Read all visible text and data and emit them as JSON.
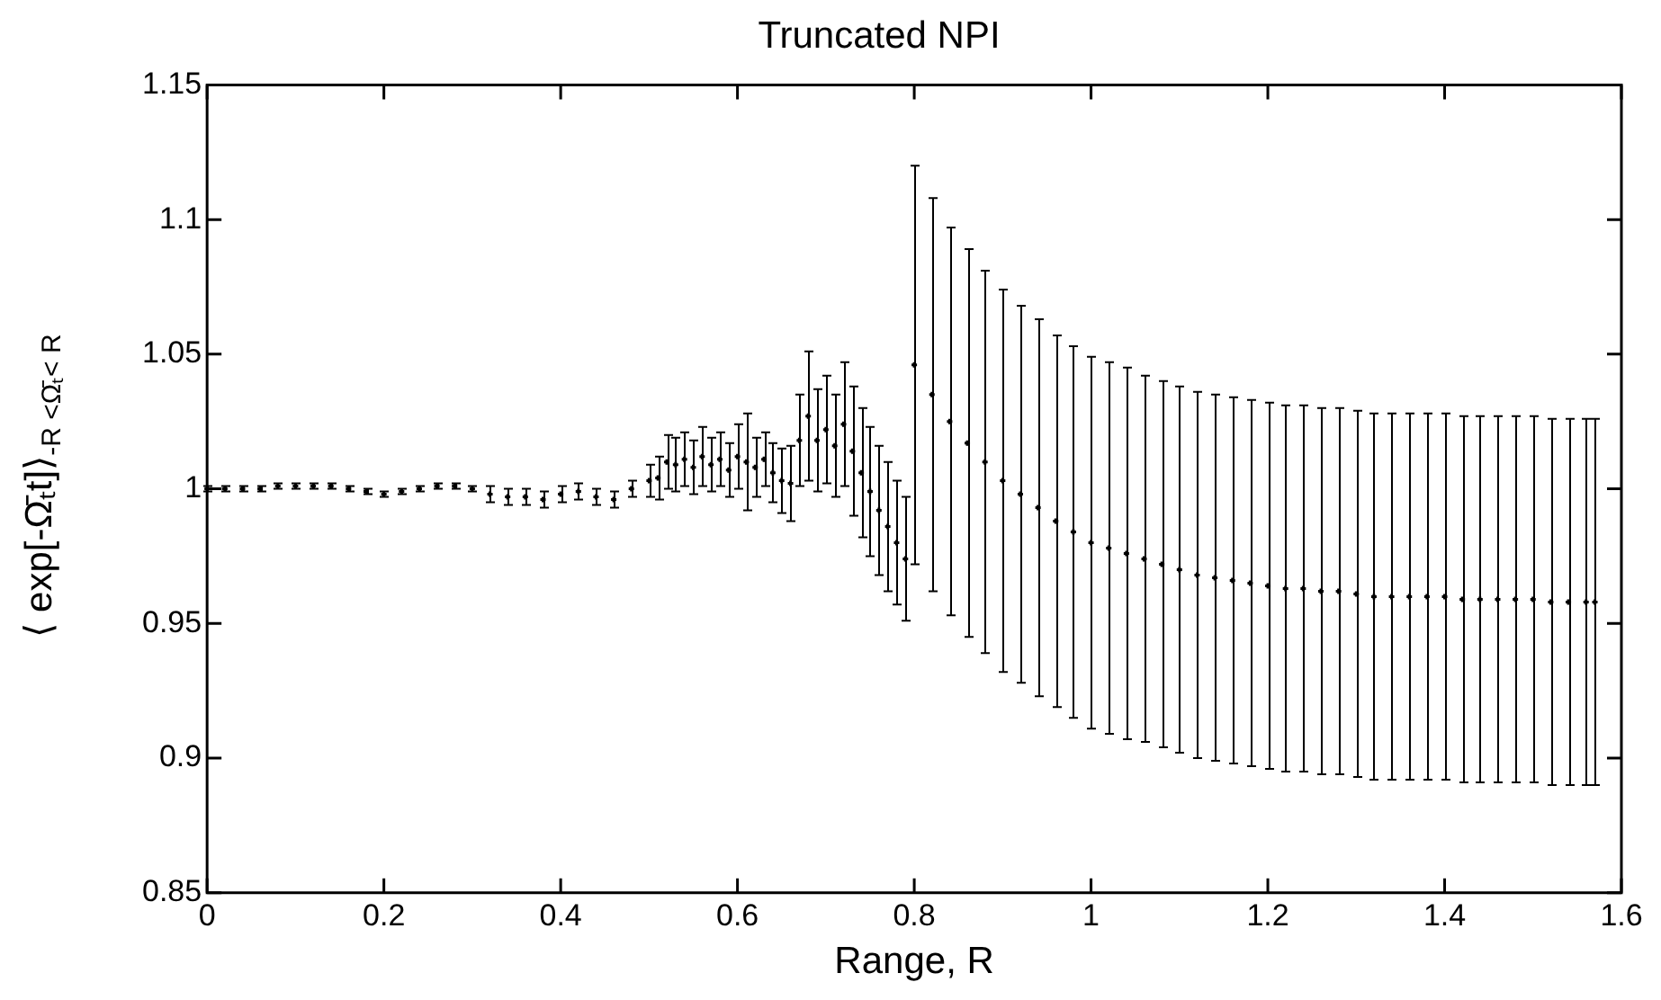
{
  "chart_data": {
    "type": "scatter",
    "title": "Truncated NPI",
    "xlabel": "Range, R",
    "ylabel": "⟨ exp[-Ω̄ₜt]⟩$_{-R <Ω̄ₜ< R}$",
    "xlim": [
      0,
      1.6
    ],
    "xticks": [
      0,
      0.2,
      0.4,
      0.6,
      0.8,
      1,
      1.2,
      1.4,
      1.6
    ],
    "ylim": [
      0.85,
      1.15
    ],
    "yticks": [
      0.85,
      0.9,
      0.95,
      1,
      1.05,
      1.1,
      1.15
    ],
    "grid": false,
    "legend": false,
    "marker": "cross",
    "series": [
      {
        "color": "#000000",
        "x": [
          0,
          0.02,
          0.04,
          0.06,
          0.08,
          0.1,
          0.12,
          0.14,
          0.16,
          0.18,
          0.2,
          0.22,
          0.24,
          0.26,
          0.28,
          0.3,
          0.32,
          0.34,
          0.36,
          0.38,
          0.4,
          0.42,
          0.44,
          0.46,
          0.48,
          0.5,
          0.51,
          0.52,
          0.53,
          0.54,
          0.55,
          0.56,
          0.57,
          0.58,
          0.59,
          0.6,
          0.61,
          0.62,
          0.63,
          0.64,
          0.65,
          0.66,
          0.67,
          0.68,
          0.69,
          0.7,
          0.71,
          0.72,
          0.73,
          0.74,
          0.75,
          0.76,
          0.77,
          0.78,
          0.79,
          0.8,
          0.82,
          0.84,
          0.86,
          0.88,
          0.9,
          0.92,
          0.94,
          0.96,
          0.98,
          1,
          1.02,
          1.04,
          1.06,
          1.08,
          1.1,
          1.12,
          1.14,
          1.16,
          1.18,
          1.2,
          1.22,
          1.24,
          1.26,
          1.28,
          1.3,
          1.32,
          1.34,
          1.36,
          1.38,
          1.4,
          1.42,
          1.44,
          1.46,
          1.48,
          1.5,
          1.52,
          1.54,
          1.56,
          1.57
        ],
        "values": [
          1.0,
          1.0,
          1.0,
          1.0,
          1.001,
          1.001,
          1.001,
          1.001,
          1.0,
          0.999,
          0.998,
          0.999,
          1.0,
          1.001,
          1.001,
          1.0,
          0.998,
          0.997,
          0.997,
          0.996,
          0.998,
          0.999,
          0.997,
          0.996,
          1.0,
          1.003,
          1.004,
          1.01,
          1.009,
          1.011,
          1.008,
          1.012,
          1.009,
          1.011,
          1.007,
          1.012,
          1.01,
          1.008,
          1.011,
          1.006,
          1.003,
          1.002,
          1.018,
          1.027,
          1.018,
          1.022,
          1.016,
          1.024,
          1.014,
          1.006,
          0.999,
          0.992,
          0.986,
          0.98,
          0.974,
          1.046,
          1.035,
          1.025,
          1.017,
          1.01,
          1.003,
          0.998,
          0.993,
          0.988,
          0.984,
          0.98,
          0.978,
          0.976,
          0.974,
          0.972,
          0.97,
          0.968,
          0.967,
          0.966,
          0.965,
          0.964,
          0.963,
          0.963,
          0.962,
          0.962,
          0.961,
          0.96,
          0.96,
          0.96,
          0.96,
          0.96,
          0.959,
          0.959,
          0.959,
          0.959,
          0.959,
          0.958,
          0.958,
          0.958,
          0.958
        ],
        "errors": [
          0.001,
          0.001,
          0.001,
          0.001,
          0.001,
          0.001,
          0.001,
          0.001,
          0.001,
          0.001,
          0.001,
          0.001,
          0.001,
          0.001,
          0.001,
          0.001,
          0.003,
          0.003,
          0.003,
          0.003,
          0.003,
          0.003,
          0.003,
          0.003,
          0.003,
          0.006,
          0.008,
          0.01,
          0.01,
          0.01,
          0.01,
          0.011,
          0.01,
          0.01,
          0.01,
          0.012,
          0.018,
          0.011,
          0.01,
          0.011,
          0.012,
          0.014,
          0.017,
          0.024,
          0.019,
          0.02,
          0.019,
          0.023,
          0.024,
          0.024,
          0.024,
          0.024,
          0.024,
          0.023,
          0.023,
          0.074,
          0.073,
          0.072,
          0.072,
          0.071,
          0.071,
          0.07,
          0.07,
          0.069,
          0.069,
          0.069,
          0.069,
          0.069,
          0.068,
          0.068,
          0.068,
          0.068,
          0.068,
          0.068,
          0.068,
          0.068,
          0.068,
          0.068,
          0.068,
          0.068,
          0.068,
          0.068,
          0.068,
          0.068,
          0.068,
          0.068,
          0.068,
          0.068,
          0.068,
          0.068,
          0.068,
          0.068,
          0.068,
          0.068,
          0.068
        ]
      }
    ]
  }
}
